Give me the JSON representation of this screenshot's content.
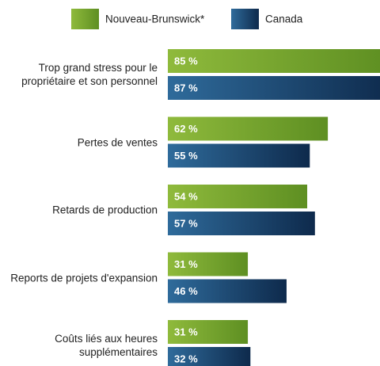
{
  "chart_data": {
    "type": "bar",
    "orientation": "horizontal",
    "categories": [
      "Trop grand stress pour le propriétaire et son personnel",
      "Pertes de ventes",
      "Retards de production",
      "Reports de projets d'expansion",
      "Coûts liés aux heures supplémentaires"
    ],
    "series": [
      {
        "name": "Nouveau-Brunswick*",
        "color": "#5e8f22",
        "values": [
          85,
          62,
          54,
          31,
          31
        ],
        "value_labels": [
          "85 %",
          "62 %",
          "54 %",
          "31 %",
          "31 %"
        ]
      },
      {
        "name": "Canada",
        "color": "#0e2a4c",
        "values": [
          87,
          55,
          57,
          46,
          32
        ],
        "value_labels": [
          "87 %",
          "55 %",
          "57 %",
          "46 %",
          "32 %"
        ]
      }
    ]
  }
}
